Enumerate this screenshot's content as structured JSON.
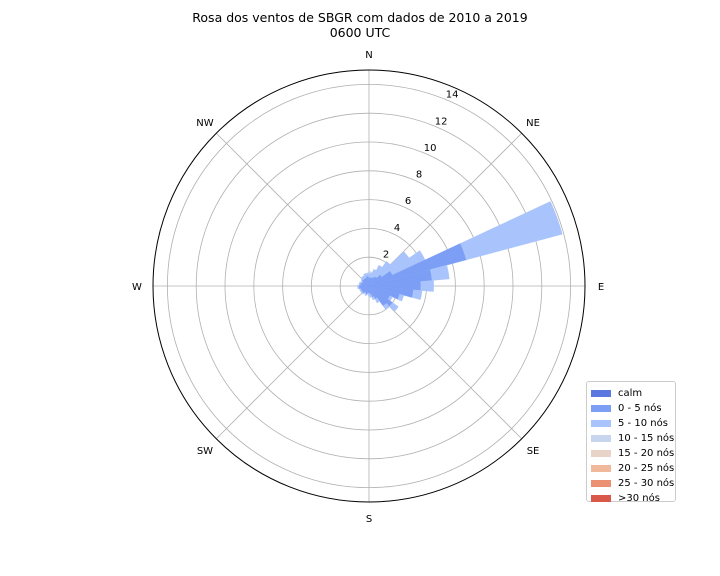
{
  "chart_data": {
    "type": "windrose",
    "title": "Rosa dos ventos de SBGR com dados de 2010 a 2019",
    "subtitle": "0600 UTC",
    "directions": [
      "N",
      "NE",
      "E",
      "SE",
      "S",
      "SW",
      "W",
      "NW"
    ],
    "radial_ticks": [
      2,
      4,
      6,
      8,
      10,
      12,
      14
    ],
    "rmax": 15,
    "grid": true,
    "legend_position": "lower-right",
    "legend": [
      {
        "label": "calm",
        "color": "#5a78e0"
      },
      {
        "label": "0 - 5 nós",
        "color": "#7c9ef5"
      },
      {
        "label": "5 - 10 nós",
        "color": "#a9c4fc"
      },
      {
        "label": "10 - 15 nós",
        "color": "#c8d5ee"
      },
      {
        "label": "15 - 20 nós",
        "color": "#e8d3c8"
      },
      {
        "label": "20 - 25 nós",
        "color": "#f2b89c"
      },
      {
        "label": "25 - 30 nós",
        "color": "#ec9072"
      },
      {
        "label": ">30 nós",
        "color": "#d9584a"
      }
    ],
    "sector_width_deg": 10,
    "sectors": [
      {
        "dir": 0,
        "values": [
          0.6,
          0.3,
          0.1
        ]
      },
      {
        "dir": 10,
        "values": [
          0.6,
          0.3,
          0.1
        ]
      },
      {
        "dir": 20,
        "values": [
          0.6,
          0.6
        ]
      },
      {
        "dir": 30,
        "values": [
          0.7,
          0.9
        ]
      },
      {
        "dir": 40,
        "values": [
          0.8,
          1.3
        ]
      },
      {
        "dir": 50,
        "values": [
          1.1,
          2.3
        ]
      },
      {
        "dir": 60,
        "values": [
          1.8,
          2.5
        ]
      },
      {
        "dir": 70,
        "values": [
          7.0,
          6.9
        ]
      },
      {
        "dir": 80,
        "values": [
          4.4,
          1.2
        ]
      },
      {
        "dir": 90,
        "values": [
          3.6,
          0.9
        ]
      },
      {
        "dir": 100,
        "values": [
          3.1,
          0.6
        ]
      },
      {
        "dir": 110,
        "values": [
          2.2,
          0.3
        ]
      },
      {
        "dir": 120,
        "values": [
          1.6,
          0.2
        ]
      },
      {
        "dir": 130,
        "values": [
          2.0,
          0.5
        ]
      },
      {
        "dir": 140,
        "values": [
          1.7,
          0.3
        ]
      },
      {
        "dir": 150,
        "values": [
          1.0,
          0.3
        ]
      },
      {
        "dir": 160,
        "values": [
          0.8,
          0.2
        ]
      },
      {
        "dir": 170,
        "values": [
          0.6,
          0.2
        ]
      },
      {
        "dir": 180,
        "values": [
          0.5,
          0.2
        ]
      },
      {
        "dir": 190,
        "values": [
          0.5,
          0.1
        ]
      },
      {
        "dir": 200,
        "values": [
          0.6,
          0.1
        ]
      },
      {
        "dir": 210,
        "values": [
          0.5,
          0.1
        ]
      },
      {
        "dir": 220,
        "values": [
          0.6,
          0.1
        ]
      },
      {
        "dir": 230,
        "values": [
          0.6,
          0.1
        ]
      },
      {
        "dir": 240,
        "values": [
          0.6,
          0.1
        ]
      },
      {
        "dir": 250,
        "values": [
          0.6,
          0.1
        ]
      },
      {
        "dir": 260,
        "values": [
          0.7,
          0.1
        ]
      },
      {
        "dir": 270,
        "values": [
          0.7,
          0.1
        ]
      },
      {
        "dir": 280,
        "values": [
          0.6,
          0.1
        ]
      },
      {
        "dir": 290,
        "values": [
          0.6,
          0.1
        ]
      },
      {
        "dir": 300,
        "values": [
          0.5,
          0.1
        ]
      },
      {
        "dir": 310,
        "values": [
          0.6,
          0.1
        ]
      },
      {
        "dir": 320,
        "values": [
          0.6,
          0.2
        ]
      },
      {
        "dir": 330,
        "values": [
          0.6,
          0.2
        ]
      },
      {
        "dir": 340,
        "values": [
          0.6,
          0.3
        ]
      },
      {
        "dir": 350,
        "values": [
          0.7,
          0.2
        ]
      }
    ]
  }
}
